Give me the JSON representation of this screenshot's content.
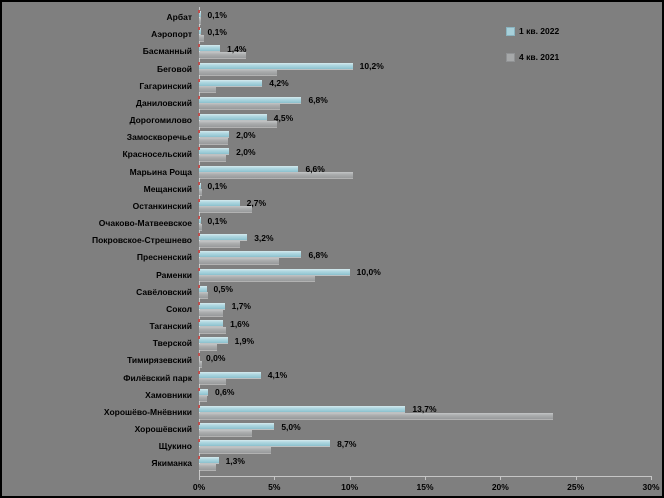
{
  "chart_data": {
    "type": "bar",
    "orientation": "horizontal",
    "title": "",
    "xlabel": "",
    "ylabel": "",
    "xlim": [
      0,
      30
    ],
    "x_ticks": [
      "0%",
      "5%",
      "10%",
      "15%",
      "20%",
      "25%",
      "30%"
    ],
    "grid": false,
    "legend_position": "top-right",
    "background_color": "#7f7f7f",
    "categories": [
      "Арбат",
      "Аэропорт",
      "Басманный",
      "Беговой",
      "Гагаринский",
      "Даниловский",
      "Дорогомилово",
      "Замоскворечье",
      "Красносельский",
      "Марьина Роща",
      "Мещанский",
      "Останкинский",
      "Очаково-Матвеевское",
      "Покровское-Стрешнево",
      "Пресненский",
      "Раменки",
      "Савёловский",
      "Сокол",
      "Таганский",
      "Тверской",
      "Тимирязевский",
      "Филёвский парк",
      "Хамовники",
      "Хорошёво-Мнёвники",
      "Хорошёвский",
      "Щукино",
      "Якиманка"
    ],
    "series": [
      {
        "name": "1 кв. 2022",
        "color": "#a7d0da",
        "values": [
          0.1,
          0.1,
          1.4,
          10.2,
          4.2,
          6.8,
          4.5,
          2.0,
          2.0,
          6.6,
          0.1,
          2.7,
          0.1,
          3.2,
          6.8,
          10.0,
          0.5,
          1.7,
          1.6,
          1.9,
          0.0,
          4.1,
          0.6,
          13.7,
          5.0,
          8.7,
          1.3
        ],
        "labels": [
          "0,1%",
          "0,1%",
          "1,4%",
          "10,2%",
          "4,2%",
          "6,8%",
          "4,5%",
          "2,0%",
          "2,0%",
          "6,6%",
          "0,1%",
          "2,7%",
          "0,1%",
          "3,2%",
          "6,8%",
          "10,0%",
          "0,5%",
          "1,7%",
          "1,6%",
          "1,9%",
          "0,0%",
          "4,1%",
          "0,6%",
          "13,7%",
          "5,0%",
          "8,7%",
          "1,3%"
        ]
      },
      {
        "name": "4 кв. 2021",
        "color": "#a6a8a9",
        "values": [
          0.1,
          0.3,
          3.1,
          5.2,
          1.1,
          5.4,
          5.2,
          1.9,
          1.8,
          10.2,
          0.2,
          3.5,
          0.2,
          2.7,
          5.3,
          7.7,
          0.6,
          1.6,
          1.8,
          1.2,
          0.2,
          1.8,
          0.5,
          23.5,
          3.5,
          4.8,
          1.1
        ],
        "labels": []
      }
    ],
    "marker_color": "#c0504d"
  }
}
